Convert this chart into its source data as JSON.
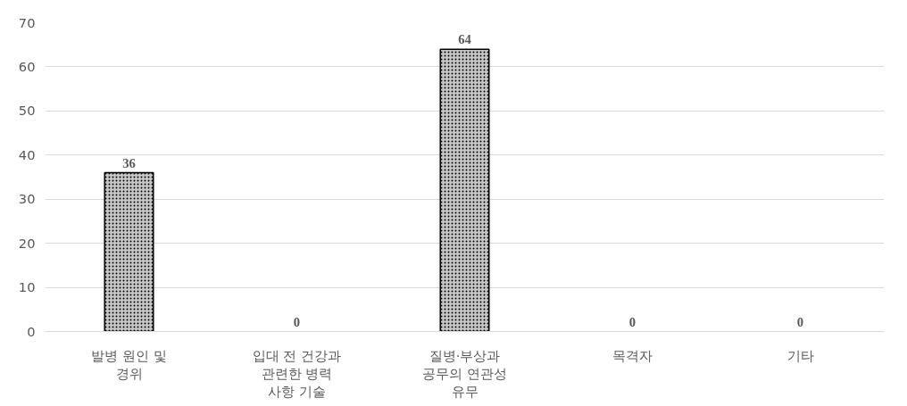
{
  "chart_data": {
    "type": "bar",
    "categories": [
      "발병 원인 및 경위",
      "입대 전 건강과 관련한 병력 사항 기술",
      "질병·부상과 공무의 연관성 유무",
      "목격자",
      "기타"
    ],
    "values": [
      36,
      0,
      64,
      0,
      0
    ],
    "color": "#c8c8c8",
    "ylim": [
      0,
      70
    ],
    "yticks": [
      0,
      10,
      20,
      30,
      40,
      50,
      60,
      70
    ],
    "grid": "y",
    "data_labels": true
  }
}
